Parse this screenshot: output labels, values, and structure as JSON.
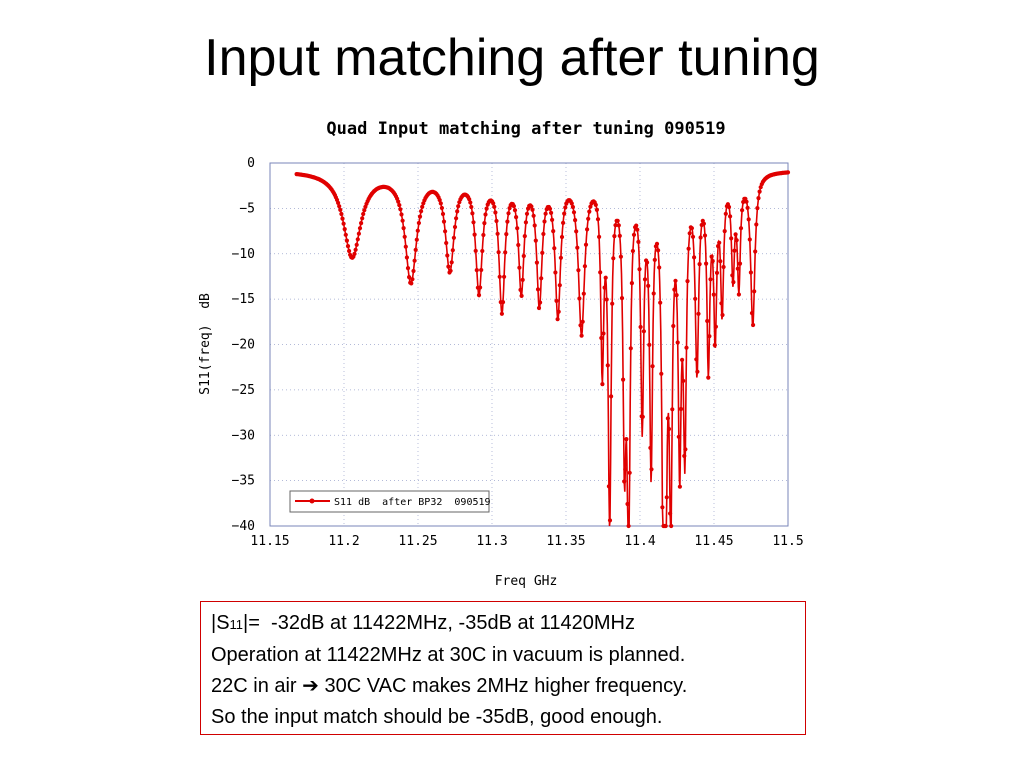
{
  "slide": {
    "title": "Input matching after tuning"
  },
  "chart_data": {
    "type": "line",
    "title": "Quad Input matching after tuning 090519",
    "xlabel": "Freq GHz",
    "ylabel": "S11(freq)  dB",
    "xlim": [
      11.15,
      11.5
    ],
    "ylim": [
      -40,
      0
    ],
    "x_ticks": [
      "11.15",
      "11.2",
      "11.25",
      "11.3",
      "11.35",
      "11.4",
      "11.45",
      "11.5"
    ],
    "y_ticks": [
      "0",
      "−5",
      "−10",
      "−15",
      "−20",
      "−25",
      "−30",
      "−35",
      "−40"
    ],
    "legend_position": "bottom-left",
    "series": [
      {
        "name": "S11 dB  after BP32  090519",
        "color": "#e00000",
        "x_start": 11.168,
        "x_end": 11.5,
        "baseline_db": -0.8,
        "dips": [
          {
            "freq": 11.2055,
            "depth": -10.2
          },
          {
            "freq": 11.2452,
            "depth": -12.7
          },
          {
            "freq": 11.2715,
            "depth": -11.2
          },
          {
            "freq": 11.2912,
            "depth": -13.5
          },
          {
            "freq": 11.3067,
            "depth": -15.4
          },
          {
            "freq": 11.3198,
            "depth": -13.3
          },
          {
            "freq": 11.332,
            "depth": -14.7
          },
          {
            "freq": 11.3445,
            "depth": -16.0
          },
          {
            "freq": 11.3605,
            "depth": -18.0
          },
          {
            "freq": 11.3745,
            "depth": -21.0
          },
          {
            "freq": 11.3795,
            "depth": -38.3
          },
          {
            "freq": 11.3895,
            "depth": -28.5
          },
          {
            "freq": 11.3923,
            "depth": -40.0
          },
          {
            "freq": 11.4015,
            "depth": -27.0
          },
          {
            "freq": 11.4075,
            "depth": -32.0
          },
          {
            "freq": 11.4158,
            "depth": -33.0
          },
          {
            "freq": 11.4172,
            "depth": -35.0
          },
          {
            "freq": 11.4208,
            "depth": -34.5
          },
          {
            "freq": 11.4268,
            "depth": -30.0
          },
          {
            "freq": 11.4303,
            "depth": -29.0
          },
          {
            "freq": 11.4385,
            "depth": -21.5
          },
          {
            "freq": 11.4462,
            "depth": -21.0
          },
          {
            "freq": 11.4508,
            "depth": -17.5
          },
          {
            "freq": 11.4555,
            "depth": -15.0
          },
          {
            "freq": 11.4628,
            "depth": -11.5
          },
          {
            "freq": 11.4668,
            "depth": -12.5
          },
          {
            "freq": 11.4762,
            "depth": -17.5
          }
        ]
      }
    ]
  },
  "note": {
    "line1_prefix": "|S",
    "line1_subscript": "11",
    "line1_rest": "|=  -32dB at 11422MHz, -35dB at 11420MHz",
    "line2": "Operation at 11422MHz at 30C in vacuum is planned.",
    "line3_a": "22C in air",
    "line3_arrow": "➔",
    "line3_b": "30C VAC makes 2MHz higher frequency.",
    "line4": "So the input match should be -35dB, good enough."
  }
}
